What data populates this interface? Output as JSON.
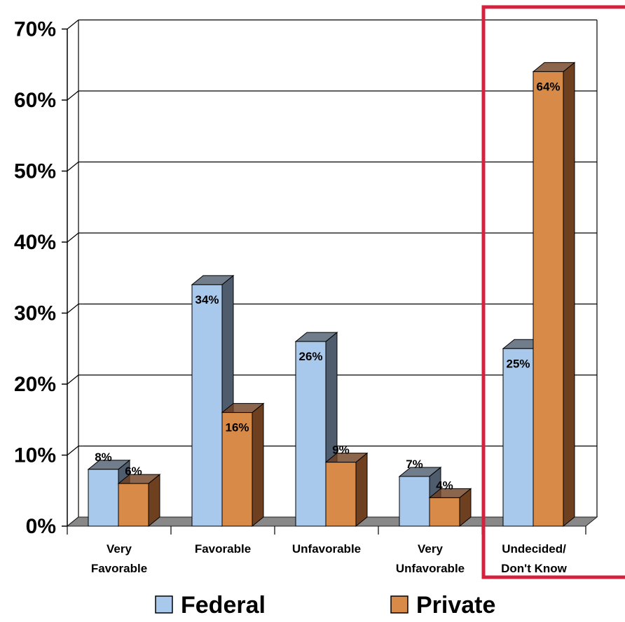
{
  "chart_data": {
    "type": "bar",
    "categories": [
      [
        "Very",
        "Favorable"
      ],
      [
        "Favorable"
      ],
      [
        "Unfavorable"
      ],
      [
        "Very",
        "Unfavorable"
      ],
      [
        "Undecided/",
        "Don't Know"
      ]
    ],
    "series": [
      {
        "name": "Federal",
        "values": [
          8,
          34,
          26,
          7,
          25
        ],
        "labels": [
          "8%",
          "34%",
          "26%",
          "7%",
          "25%"
        ],
        "color": "#a8c8ec",
        "side_color": "#4e5c6e"
      },
      {
        "name": "Private",
        "values": [
          6,
          16,
          9,
          4,
          64
        ],
        "labels": [
          "6%",
          "16%",
          "9%",
          "4%",
          "64%"
        ],
        "color": "#d88a48",
        "side_color": "#6e4020"
      }
    ],
    "ylim": [
      0,
      70
    ],
    "yticks": [
      "0%",
      "10%",
      "20%",
      "30%",
      "40%",
      "50%",
      "60%",
      "70%"
    ],
    "grid": true,
    "legend_position": "bottom",
    "highlight_category": 4,
    "highlight_color": "#d4213d"
  }
}
